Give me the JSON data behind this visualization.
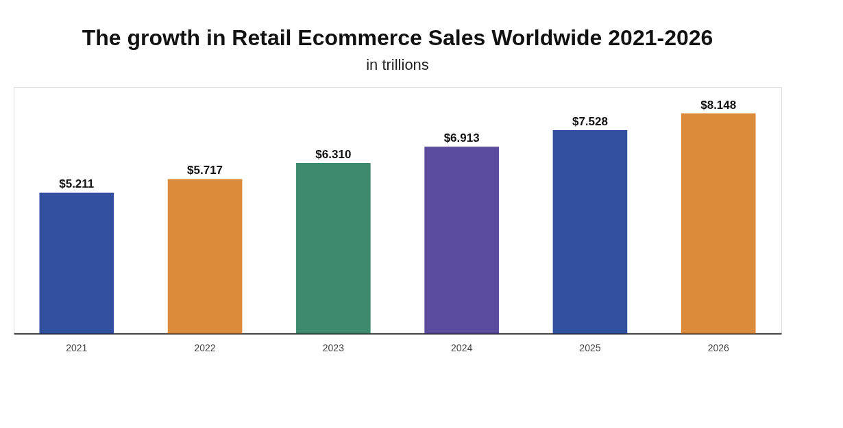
{
  "chart_data": {
    "type": "bar",
    "title": "The growth in Retail Ecommerce Sales Worldwide 2021-2026",
    "subtitle": "in trillions",
    "categories": [
      "2021",
      "2022",
      "2023",
      "2024",
      "2025",
      "2026"
    ],
    "values": [
      5.211,
      5.717,
      6.31,
      6.913,
      7.528,
      8.148
    ],
    "colors": [
      "#3350a0",
      "#db8b3a",
      "#3e8a6e",
      "#5c4a9e",
      "#3350a0",
      "#db8b3a"
    ],
    "value_labels": [
      "$5.211",
      "$5.717",
      "$6.310",
      "$6.913",
      "$7.528",
      "$8.148"
    ],
    "grid": false,
    "tick_labels": "x"
  }
}
